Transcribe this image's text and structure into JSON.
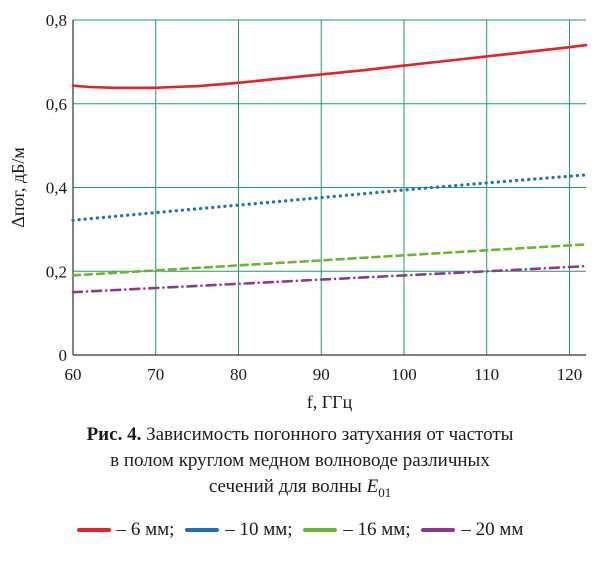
{
  "chart_data": {
    "type": "line",
    "xlabel": "f, ГГц",
    "ylabel": "Δпог, дБ/м",
    "xlim": [
      60,
      122
    ],
    "ylim": [
      0,
      0.8
    ],
    "xticks": [
      "60",
      "70",
      "80",
      "90",
      "100",
      "110",
      "120"
    ],
    "yticks": [
      "0",
      "0,2",
      "0,4",
      "0,6",
      "0,8"
    ],
    "grid": true,
    "grid_color": "#1e9a6a",
    "series": [
      {
        "name": "6 мм",
        "color": "#e8202a",
        "style": "solid",
        "x": [
          60,
          62,
          65,
          68,
          70,
          72,
          75,
          80,
          85,
          90,
          95,
          100,
          105,
          110,
          115,
          120,
          122
        ],
        "values": [
          0.643,
          0.64,
          0.638,
          0.638,
          0.638,
          0.64,
          0.642,
          0.65,
          0.66,
          0.67,
          0.68,
          0.691,
          0.702,
          0.713,
          0.724,
          0.735,
          0.74
        ]
      },
      {
        "name": "10 мм",
        "color": "#1f6fb8",
        "style": "dotted",
        "x": [
          60,
          70,
          80,
          90,
          100,
          110,
          122
        ],
        "values": [
          0.322,
          0.34,
          0.358,
          0.376,
          0.394,
          0.411,
          0.43
        ]
      },
      {
        "name": "16 мм",
        "color": "#6ab72e",
        "style": "dashed",
        "x": [
          60,
          70,
          80,
          90,
          100,
          110,
          122
        ],
        "values": [
          0.19,
          0.202,
          0.214,
          0.226,
          0.238,
          0.25,
          0.264
        ]
      },
      {
        "name": "20 мм",
        "color": "#8a3a8e",
        "style": "dashdot",
        "x": [
          60,
          70,
          80,
          90,
          100,
          110,
          122
        ],
        "values": [
          0.15,
          0.16,
          0.17,
          0.18,
          0.19,
          0.2,
          0.212
        ]
      }
    ]
  },
  "caption": {
    "bold": "Рис. 4.",
    "line1": " Зависимость погонного затухания от частоты",
    "line2": "в полом круглом медном волноводе различных",
    "line3": "сечений для волны ",
    "wave_symbol": "E",
    "wave_subscript": "01"
  },
  "legend": [
    {
      "text": "– 6 мм;"
    },
    {
      "text": "– 10 мм;"
    },
    {
      "text": "– 16 мм;"
    },
    {
      "text": "– 20 мм"
    }
  ]
}
